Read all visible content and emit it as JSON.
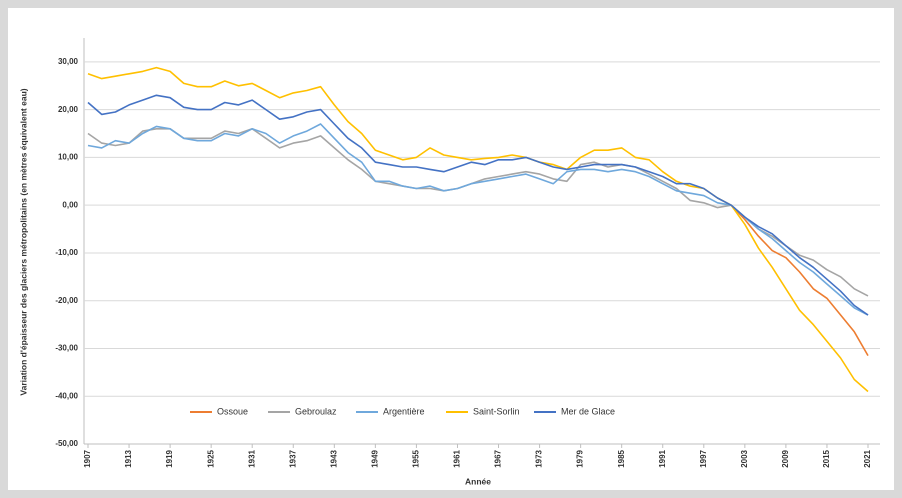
{
  "chart_data": {
    "type": "line",
    "y_label": "Variation d'épaisseur des glaciers métropolitains (en mètres équivalent eau)",
    "x_label": "Année",
    "x": [
      1907,
      1909,
      1911,
      1913,
      1915,
      1917,
      1919,
      1921,
      1923,
      1925,
      1927,
      1929,
      1931,
      1933,
      1935,
      1937,
      1939,
      1941,
      1943,
      1945,
      1947,
      1949,
      1951,
      1953,
      1955,
      1957,
      1959,
      1961,
      1963,
      1965,
      1967,
      1969,
      1971,
      1973,
      1975,
      1977,
      1979,
      1981,
      1983,
      1985,
      1987,
      1989,
      1991,
      1993,
      1995,
      1997,
      1999,
      2001,
      2003,
      2005,
      2007,
      2009,
      2011,
      2013,
      2015,
      2017,
      2019,
      2021
    ],
    "series": [
      {
        "name": "Ossoue",
        "color": "#ed7d31",
        "values": [
          null,
          null,
          null,
          null,
          null,
          null,
          null,
          null,
          null,
          null,
          null,
          null,
          null,
          null,
          null,
          null,
          null,
          null,
          null,
          null,
          null,
          null,
          null,
          null,
          null,
          null,
          null,
          null,
          null,
          null,
          null,
          null,
          null,
          null,
          null,
          null,
          null,
          null,
          null,
          null,
          null,
          null,
          null,
          null,
          null,
          null,
          null,
          0,
          -3,
          -6.5,
          -9.5,
          -11,
          -14,
          -17.5,
          -19.5,
          -23,
          -26.5,
          -31.5
        ]
      },
      {
        "name": "Gebroulaz",
        "color": "#a5a5a5",
        "values": [
          15,
          13,
          12.5,
          13,
          15.5,
          16,
          16,
          14,
          14,
          14,
          15.5,
          15,
          16,
          14,
          12,
          13,
          13.5,
          14.5,
          12,
          9.5,
          7.5,
          5,
          4.5,
          4,
          3.5,
          3.5,
          3,
          3.5,
          4.5,
          5.5,
          6,
          6.5,
          7,
          6.5,
          5.5,
          5,
          8.5,
          9,
          8,
          8.5,
          8,
          6.5,
          5,
          3.5,
          1,
          0.5,
          -0.5,
          0,
          -2.5,
          -5,
          -6.5,
          -8.5,
          -10.5,
          -11.5,
          -13.5,
          -15,
          -17.5,
          -19
        ]
      },
      {
        "name": "Argentière",
        "color": "#6fa8dc",
        "values": [
          12.5,
          12,
          13.5,
          13,
          15,
          16.5,
          16,
          14,
          13.5,
          13.5,
          15,
          14.5,
          16,
          15,
          13,
          14.5,
          15.5,
          17,
          14,
          11,
          9,
          5,
          5,
          4,
          3.5,
          4,
          3,
          3.5,
          4.5,
          5,
          5.5,
          6,
          6.5,
          5.5,
          4.5,
          7,
          7.5,
          7.5,
          7,
          7.5,
          7,
          6,
          4.5,
          3,
          2.5,
          2,
          0.5,
          0,
          -2.5,
          -5,
          -7,
          -9.5,
          -12,
          -14,
          -16.5,
          -19,
          -21.5,
          -23
        ]
      },
      {
        "name": "Saint-Sorlin",
        "color": "#ffc000",
        "values": [
          27.5,
          26.5,
          27,
          27.5,
          28,
          28.8,
          28,
          25.5,
          24.8,
          24.8,
          26,
          25,
          25.5,
          24,
          22.5,
          23.5,
          24,
          24.8,
          21,
          17.5,
          15,
          11.5,
          10.5,
          9.5,
          10,
          12,
          10.5,
          10,
          9.5,
          9.8,
          10,
          10.5,
          10,
          9,
          8.5,
          7.5,
          10,
          11.5,
          11.5,
          12,
          10,
          9.5,
          7,
          5,
          4,
          3.5,
          1.5,
          0,
          -4,
          -9,
          -13,
          -17.5,
          -22,
          -25,
          -28.5,
          -32,
          -36.5,
          -39
        ]
      },
      {
        "name": "Mer de Glace",
        "color": "#4472c4",
        "values": [
          21.5,
          19,
          19.5,
          21,
          22,
          23,
          22.5,
          20.5,
          20,
          20,
          21.5,
          21,
          22,
          20,
          18,
          18.5,
          19.5,
          20,
          17,
          14,
          12,
          9,
          8.5,
          8,
          8,
          7.5,
          7,
          8,
          9,
          8.5,
          9.5,
          9.5,
          10,
          9,
          8,
          7.5,
          8,
          8.5,
          8.5,
          8.5,
          8,
          7,
          6,
          4.5,
          4.5,
          3.5,
          1.5,
          0,
          -2.5,
          -4.5,
          -6,
          -8.5,
          -11,
          -13,
          -15.5,
          -18,
          -21,
          -23
        ]
      }
    ],
    "xlim": [
      1907,
      2021
    ],
    "xticks": [
      1907,
      1913,
      1919,
      1925,
      1931,
      1937,
      1943,
      1949,
      1955,
      1961,
      1967,
      1973,
      1979,
      1985,
      1991,
      1997,
      2003,
      2009,
      2015,
      2021
    ],
    "ylim": [
      -50,
      35
    ],
    "yticks": [
      {
        "value": -50,
        "label": "-50,00"
      },
      {
        "value": -40,
        "label": "-40,00"
      },
      {
        "value": -30,
        "label": "-30,00"
      },
      {
        "value": -20,
        "label": "-20,00"
      },
      {
        "value": -10,
        "label": "-10,00"
      },
      {
        "value": 0,
        "label": "0,00"
      },
      {
        "value": 10,
        "label": "10,00"
      },
      {
        "value": 20,
        "label": "20,00"
      },
      {
        "value": 30,
        "label": "30,00"
      }
    ],
    "grid": true,
    "legend": "bottom"
  }
}
